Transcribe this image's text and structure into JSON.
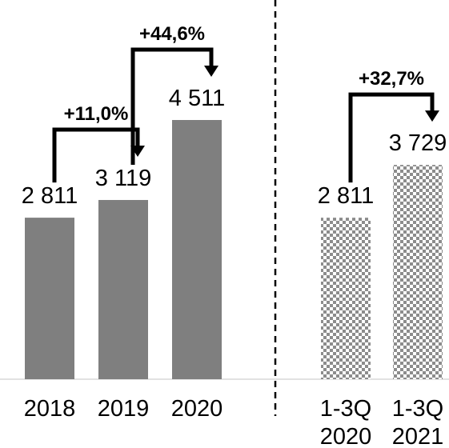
{
  "chart_data": {
    "type": "bar",
    "categories": [
      "2018",
      "2019",
      "2020",
      "1-3Q 2020",
      "1-3Q 2021"
    ],
    "category_lines": [
      [
        "2018"
      ],
      [
        "2019"
      ],
      [
        "2020"
      ],
      [
        "1-3Q",
        "2020"
      ],
      [
        "1-3Q",
        "2021"
      ]
    ],
    "values": [
      2811,
      3119,
      4511,
      2811,
      3729
    ],
    "value_labels": [
      "2 811",
      "3 119",
      "4 511",
      "2 811",
      "3 729"
    ],
    "bar_styles": [
      "solid",
      "solid",
      "solid",
      "checkered",
      "checkered"
    ],
    "growth_annotations": [
      {
        "label": "+11,0%",
        "from": 0,
        "to": 1
      },
      {
        "label": "+44,6%",
        "from": 1,
        "to": 2
      },
      {
        "label": "+32,7%",
        "from": 3,
        "to": 4
      }
    ],
    "groups": [
      [
        0,
        1,
        2
      ],
      [
        3,
        4
      ]
    ],
    "title": "",
    "xlabel": "",
    "ylabel": "",
    "ylim": [
      0,
      4511
    ],
    "grid": false,
    "legend": "none",
    "colors": {
      "bar": "#7f7f7f",
      "checker": "#8c8c8c",
      "background": "#ffffff",
      "baseline": "#d9d9d9",
      "divider": "#000000",
      "arrow": "#000000"
    }
  }
}
